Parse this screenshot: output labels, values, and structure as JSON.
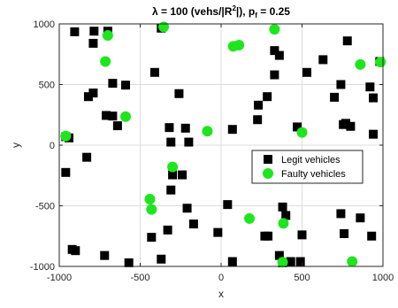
{
  "chart_data": {
    "type": "scatter",
    "title": {
      "prefix": "λ = 100 (vehs/|R",
      "sup": "2",
      "middle": "|), p",
      "sub": "f",
      "suffix": " = 0.25"
    },
    "xlabel": "x",
    "ylabel": "y",
    "xlim": [
      -1000,
      1000
    ],
    "ylim": [
      -1000,
      1000
    ],
    "xticks": [
      -1000,
      -500,
      0,
      500,
      1000
    ],
    "yticks": [
      -1000,
      -500,
      0,
      500,
      1000
    ],
    "grid": true,
    "legend_position": "right-middle",
    "series": [
      {
        "name": "Legit vehicles",
        "marker": "square",
        "color": "#000000",
        "points": [
          [
            -905,
            935
          ],
          [
            -785,
            940
          ],
          [
            -700,
            940
          ],
          [
            -790,
            840
          ],
          [
            -370,
            965
          ],
          [
            -820,
            400
          ],
          [
            -790,
            430
          ],
          [
            -670,
            510
          ],
          [
            -590,
            495
          ],
          [
            -710,
            245
          ],
          [
            -670,
            240
          ],
          [
            -640,
            160
          ],
          [
            -410,
            600
          ],
          [
            -960,
            70
          ],
          [
            -940,
            60
          ],
          [
            -830,
            -100
          ],
          [
            -960,
            -225
          ],
          [
            -320,
            145
          ],
          [
            -310,
            25
          ],
          [
            -260,
            425
          ],
          [
            -220,
            140
          ],
          [
            -200,
            25
          ],
          [
            -240,
            -245
          ],
          [
            -300,
            -245
          ],
          [
            -310,
            -370
          ],
          [
            -210,
            -520
          ],
          [
            -170,
            -650
          ],
          [
            -330,
            -700
          ],
          [
            -430,
            -760
          ],
          [
            -370,
            -940
          ],
          [
            -570,
            -970
          ],
          [
            -900,
            -870
          ],
          [
            -920,
            -860
          ],
          [
            -720,
            -910
          ],
          [
            40,
            -490
          ],
          [
            -20,
            -720
          ],
          [
            70,
            -960
          ],
          [
            70,
            130
          ],
          [
            230,
            330
          ],
          [
            225,
            210
          ],
          [
            285,
            400
          ],
          [
            330,
            780
          ],
          [
            360,
            740
          ],
          [
            330,
            580
          ],
          [
            380,
            -510
          ],
          [
            400,
            -580
          ],
          [
            270,
            -750
          ],
          [
            290,
            -750
          ],
          [
            360,
            -910
          ],
          [
            430,
            -960
          ],
          [
            490,
            -960
          ],
          [
            500,
            -740
          ],
          [
            380,
            -970
          ],
          [
            470,
            150
          ],
          [
            530,
            600
          ],
          [
            630,
            705
          ],
          [
            700,
            395
          ],
          [
            740,
            500
          ],
          [
            740,
            -565
          ],
          [
            755,
            170
          ],
          [
            770,
            180
          ],
          [
            780,
            860
          ],
          [
            800,
            155
          ],
          [
            860,
            -600
          ],
          [
            920,
            480
          ],
          [
            940,
            90
          ],
          [
            940,
            390
          ],
          [
            930,
            -750
          ],
          [
            980,
            690
          ],
          [
            760,
            -730
          ]
        ]
      },
      {
        "name": "Faulty vehicles",
        "marker": "circle",
        "color": "#1ee61e",
        "points": [
          [
            -355,
            975
          ],
          [
            -700,
            905
          ],
          [
            -715,
            690
          ],
          [
            -590,
            235
          ],
          [
            -960,
            75
          ],
          [
            -300,
            -180
          ],
          [
            -85,
            115
          ],
          [
            -440,
            -445
          ],
          [
            -430,
            -530
          ],
          [
            75,
            815
          ],
          [
            110,
            825
          ],
          [
            330,
            955
          ],
          [
            175,
            -605
          ],
          [
            385,
            -645
          ],
          [
            380,
            -965
          ],
          [
            500,
            105
          ],
          [
            860,
            665
          ],
          [
            985,
            685
          ],
          [
            810,
            -960
          ]
        ]
      }
    ]
  }
}
